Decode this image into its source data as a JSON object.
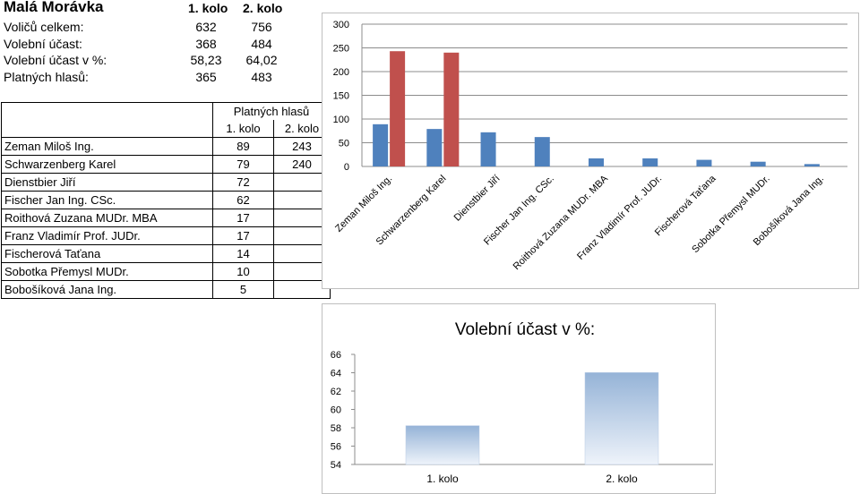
{
  "title": "Malá Morávka",
  "rounds": [
    "1. kolo",
    "2. kolo"
  ],
  "summary": [
    {
      "label": "Voličů celkem:",
      "v1": "632",
      "v2": "756"
    },
    {
      "label": "Volební účast:",
      "v1": "368",
      "v2": "484"
    },
    {
      "label": "Volební účast v %:",
      "v1": "58,23",
      "v2": "64,02"
    },
    {
      "label": "Platných hlasů:",
      "v1": "365",
      "v2": "483"
    }
  ],
  "table": {
    "header": "Platných hlasů",
    "col1": "1. kolo",
    "col2": "2. kolo",
    "rows": [
      {
        "name": "Zeman Miloš Ing.",
        "v1": "89",
        "v2": "243"
      },
      {
        "name": "Schwarzenberg Karel",
        "v1": "79",
        "v2": "240"
      },
      {
        "name": "Dienstbier Jiří",
        "v1": "72",
        "v2": ""
      },
      {
        "name": "Fischer Jan Ing. CSc.",
        "v1": "62",
        "v2": ""
      },
      {
        "name": "Roithová Zuzana MUDr. MBA",
        "v1": "17",
        "v2": ""
      },
      {
        "name": "Franz Vladimír Prof. JUDr.",
        "v1": "17",
        "v2": ""
      },
      {
        "name": "Fischerová Taťana",
        "v1": "14",
        "v2": ""
      },
      {
        "name": "Sobotka Přemysl MUDr.",
        "v1": "10",
        "v2": ""
      },
      {
        "name": "Bobošíková Jana Ing.",
        "v1": "5",
        "v2": ""
      }
    ]
  },
  "chart_data": [
    {
      "type": "bar",
      "categories": [
        "Zeman Miloš Ing.",
        "Schwarzenberg Karel",
        "Dienstbier Jiří",
        "Fischer Jan Ing. CSc.",
        "Roithová Zuzana MUDr. MBA",
        "Franz Vladimír Prof. JUDr.",
        "Fischerová Taťana",
        "Sobotka Přemysl MUDr.",
        "Bobošíková Jana Ing."
      ],
      "series": [
        {
          "values": [
            89,
            79,
            72,
            62,
            17,
            17,
            14,
            10,
            5
          ],
          "color": "#4f81bd"
        },
        {
          "values": [
            243,
            240,
            null,
            null,
            null,
            null,
            null,
            null,
            null
          ],
          "color": "#c0504d"
        }
      ],
      "ylim": [
        0,
        300
      ],
      "yticks": [
        0,
        50,
        100,
        150,
        200,
        250,
        300
      ],
      "grid": true,
      "title": "",
      "xlabel": "",
      "ylabel": ""
    },
    {
      "type": "bar",
      "title": "Volební účast v %:",
      "categories": [
        "1. kolo",
        "2. kolo"
      ],
      "values": [
        58.23,
        64.02
      ],
      "ylim": [
        54,
        66
      ],
      "yticks": [
        54,
        56,
        58,
        60,
        62,
        64,
        66
      ],
      "grid": false,
      "color": "#95b3d7",
      "xlabel": "",
      "ylabel": ""
    }
  ]
}
